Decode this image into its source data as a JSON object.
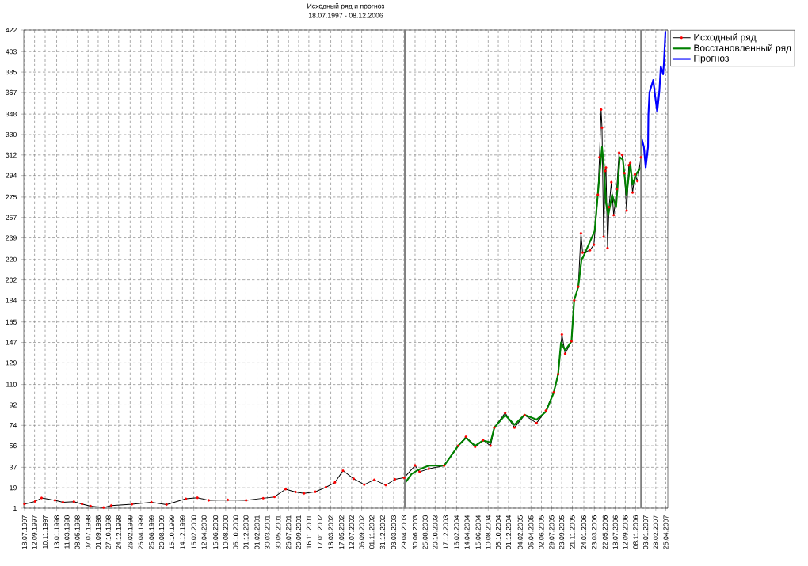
{
  "chart_data": {
    "type": "line",
    "title": "Исходный ряд и прогноз",
    "subtitle": "18.07.1997  -  08.12.2006",
    "xlim": [
      "1997-07-14",
      "2007-05-06"
    ],
    "ylim": [
      1,
      422
    ],
    "xticks": [
      {
        "value": "1997-07-18",
        "label": "18.07.1997"
      },
      {
        "value": "1997-09-12",
        "label": "12.09.1997"
      },
      {
        "value": "1997-11-10",
        "label": "10.11.1997"
      },
      {
        "value": "1998-01-13",
        "label": "13.01.1998"
      },
      {
        "value": "1998-03-11",
        "label": "11.03.1998"
      },
      {
        "value": "1998-05-08",
        "label": "08.05.1998"
      },
      {
        "value": "1998-07-07",
        "label": "07.07.1998"
      },
      {
        "value": "1998-09-01",
        "label": "01.09.1998"
      },
      {
        "value": "1998-10-27",
        "label": "27.10.1998"
      },
      {
        "value": "1998-12-24",
        "label": "24.12.1998"
      },
      {
        "value": "1999-02-26",
        "label": "26.02.1999"
      },
      {
        "value": "1999-04-26",
        "label": "26.04.1999"
      },
      {
        "value": "1999-06-25",
        "label": "25.06.1999"
      },
      {
        "value": "1999-08-20",
        "label": "20.08.1999"
      },
      {
        "value": "1999-10-15",
        "label": "15.10.1999"
      },
      {
        "value": "1999-12-14",
        "label": "14.12.1999"
      },
      {
        "value": "2000-02-15",
        "label": "15.02.2000"
      },
      {
        "value": "2000-04-12",
        "label": "12.04.2000"
      },
      {
        "value": "2000-06-15",
        "label": "15.06.2000"
      },
      {
        "value": "2000-08-10",
        "label": "10.08.2000"
      },
      {
        "value": "2000-10-05",
        "label": "05.10.2000"
      },
      {
        "value": "2000-12-01",
        "label": "01.12.2000"
      },
      {
        "value": "2001-02-01",
        "label": "01.02.2001"
      },
      {
        "value": "2001-03-30",
        "label": "30.03.2001"
      },
      {
        "value": "2001-05-30",
        "label": "30.05.2001"
      },
      {
        "value": "2001-07-26",
        "label": "26.07.2001"
      },
      {
        "value": "2001-09-20",
        "label": "20.09.2001"
      },
      {
        "value": "2001-11-16",
        "label": "16.11.2001"
      },
      {
        "value": "2002-01-17",
        "label": "17.01.2002"
      },
      {
        "value": "2002-03-18",
        "label": "18.03.2002"
      },
      {
        "value": "2002-05-17",
        "label": "17.05.2002"
      },
      {
        "value": "2002-07-12",
        "label": "12.07.2002"
      },
      {
        "value": "2002-09-06",
        "label": "06.09.2002"
      },
      {
        "value": "2002-11-01",
        "label": "01.11.2002"
      },
      {
        "value": "2002-12-31",
        "label": "31.12.2002"
      },
      {
        "value": "2003-03-03",
        "label": "03.03.2003"
      },
      {
        "value": "2003-04-29",
        "label": "29.04.2003"
      },
      {
        "value": "2003-06-30",
        "label": "30.06.2003"
      },
      {
        "value": "2003-08-25",
        "label": "25.08.2003"
      },
      {
        "value": "2003-10-20",
        "label": "20.10.2003"
      },
      {
        "value": "2003-12-17",
        "label": "17.12.2003"
      },
      {
        "value": "2004-02-16",
        "label": "16.02.2004"
      },
      {
        "value": "2004-04-14",
        "label": "14.04.2004"
      },
      {
        "value": "2004-06-15",
        "label": "15.06.2004"
      },
      {
        "value": "2004-08-10",
        "label": "10.08.2004"
      },
      {
        "value": "2004-10-05",
        "label": "05.10.2004"
      },
      {
        "value": "2004-12-01",
        "label": "01.12.2004"
      },
      {
        "value": "2005-02-04",
        "label": "04.02.2005"
      },
      {
        "value": "2005-04-05",
        "label": "05.04.2005"
      },
      {
        "value": "2005-06-02",
        "label": "02.06.2005"
      },
      {
        "value": "2005-07-29",
        "label": "29.07.2005"
      },
      {
        "value": "2005-09-23",
        "label": "23.09.2005"
      },
      {
        "value": "2005-11-21",
        "label": "21.11.2005"
      },
      {
        "value": "2006-01-24",
        "label": "24.01.2006"
      },
      {
        "value": "2006-03-23",
        "label": "23.03.2006"
      },
      {
        "value": "2006-05-22",
        "label": "22.05.2006"
      },
      {
        "value": "2006-07-18",
        "label": "18.07.2006"
      },
      {
        "value": "2006-09-12",
        "label": "12.09.2006"
      },
      {
        "value": "2006-11-08",
        "label": "08.11.2006"
      },
      {
        "value": "2007-01-03",
        "label": "03.01.2007"
      },
      {
        "value": "2007-02-28",
        "label": "28.02.2007"
      },
      {
        "value": "2007-04-25",
        "label": "25.04.2007"
      }
    ],
    "yticks": [
      1,
      19,
      37,
      56,
      74,
      92,
      110,
      129,
      147,
      165,
      184,
      202,
      220,
      239,
      257,
      275,
      294,
      312,
      330,
      348,
      367,
      385,
      403,
      422
    ],
    "grid": true,
    "legend": "top right",
    "line_style": "solid",
    "ref_lines": [
      {
        "axis": "x",
        "value": "2003-05-04",
        "color": "#808080"
      },
      {
        "axis": "x",
        "value": "2006-12-08",
        "color": "#808080"
      }
    ],
    "series": [
      {
        "name": "Исходный ряд",
        "color": "#000000",
        "marker": "circle",
        "x": [
          "1997-07-18",
          "1997-09-15",
          "1997-10-21",
          "1998-01-04",
          "1998-02-17",
          "1998-04-19",
          "1998-06-03",
          "1998-07-21",
          "1998-10-01",
          "1998-11-13",
          "1999-03-08",
          "1999-06-24",
          "1999-09-16",
          "2000-01-02",
          "2000-03-06",
          "2000-05-08",
          "2000-08-22",
          "2000-12-02",
          "2001-03-07",
          "2001-05-09",
          "2001-07-10",
          "2001-09-03",
          "2001-10-20",
          "2001-12-22",
          "2002-02-19",
          "2002-04-10",
          "2002-05-25",
          "2002-07-23",
          "2002-09-20",
          "2002-11-15",
          "2003-01-18",
          "2003-03-10",
          "2003-04-30",
          "2003-06-30",
          "2003-07-25",
          "2003-09-14",
          "2003-12-09",
          "2004-02-25",
          "2004-04-08",
          "2004-05-29",
          "2004-07-12",
          "2004-08-23",
          "2004-09-13",
          "2004-11-12",
          "2005-01-03",
          "2005-02-28",
          "2005-05-06",
          "2005-06-27",
          "2005-08-09",
          "2005-09-03",
          "2005-09-24",
          "2005-10-12",
          "2005-11-16",
          "2005-12-01",
          "2005-12-24",
          "2006-01-08",
          "2006-01-17",
          "2006-02-27",
          "2006-03-21",
          "2006-04-12",
          "2006-04-21",
          "2006-04-30",
          "2006-05-05",
          "2006-05-14",
          "2006-05-23",
          "2006-05-27",
          "2006-06-05",
          "2006-06-13",
          "2006-06-26",
          "2006-07-09",
          "2006-07-26",
          "2006-08-08",
          "2006-08-25",
          "2006-09-07",
          "2006-09-19",
          "2006-10-01",
          "2006-10-09",
          "2006-10-22",
          "2006-11-04",
          "2006-11-18",
          "2006-12-08"
        ],
        "values": [
          4.7,
          7,
          10,
          8,
          6.3,
          6.8,
          4.7,
          2.8,
          1.5,
          3.3,
          4.5,
          6.3,
          4.2,
          9.3,
          10.2,
          8,
          8.4,
          8,
          9.8,
          11,
          17.8,
          15.3,
          14,
          15.5,
          19.5,
          23.6,
          34,
          27,
          21.8,
          26,
          21.3,
          26.4,
          27.8,
          38.6,
          33,
          35.6,
          38.5,
          56,
          64,
          55,
          61,
          56,
          72,
          85,
          72,
          83,
          76,
          87,
          103,
          119,
          154,
          137,
          148,
          184,
          196,
          243,
          226,
          228,
          233,
          277,
          310,
          352,
          336,
          240,
          298,
          301,
          230,
          266,
          288,
          259,
          282,
          314,
          312,
          296,
          263,
          303,
          305,
          279,
          295,
          289,
          310
        ]
      },
      {
        "name": "Восстановленный ряд",
        "color": "#008000",
        "x": [
          "2003-04-30",
          "2003-06-10",
          "2003-07-20",
          "2003-09-14",
          "2003-12-09",
          "2004-02-25",
          "2004-04-08",
          "2004-05-29",
          "2004-07-12",
          "2004-08-23",
          "2004-09-13",
          "2004-11-12",
          "2005-01-03",
          "2005-02-28",
          "2005-05-06",
          "2005-06-27",
          "2005-08-09",
          "2005-09-03",
          "2005-09-19",
          "2005-10-12",
          "2005-11-16",
          "2005-12-01",
          "2005-12-24",
          "2006-01-12",
          "2006-01-17",
          "2006-03-25",
          "2006-04-17",
          "2006-05-05",
          "2006-05-14",
          "2006-05-27",
          "2006-06-09",
          "2006-06-30",
          "2006-07-22",
          "2006-08-12",
          "2006-08-29",
          "2006-09-19",
          "2006-10-09",
          "2006-10-22",
          "2006-11-14",
          "2006-12-08"
        ],
        "values": [
          22,
          31,
          35,
          38.5,
          38.5,
          56,
          63,
          56,
          60.6,
          59,
          72,
          83,
          74.6,
          83.3,
          79,
          86,
          102.6,
          119,
          147,
          140,
          148,
          184,
          196,
          221,
          221,
          245,
          287,
          319,
          305,
          270,
          259,
          277,
          266,
          310,
          308,
          277,
          305,
          286,
          296,
          301
        ]
      },
      {
        "name": "Прогноз",
        "color": "#0000ff",
        "x": [
          "2006-12-08",
          "2006-12-24",
          "2007-01-03",
          "2007-01-16",
          "2007-01-18",
          "2007-01-24",
          "2007-02-14",
          "2007-02-27",
          "2007-03-08",
          "2007-03-20",
          "2007-03-28",
          "2007-04-10",
          "2007-04-14",
          "2007-04-23"
        ],
        "values": [
          329,
          319,
          301,
          319,
          347,
          367,
          378,
          361,
          350,
          368,
          390,
          383,
          392,
          421
        ]
      }
    ]
  }
}
